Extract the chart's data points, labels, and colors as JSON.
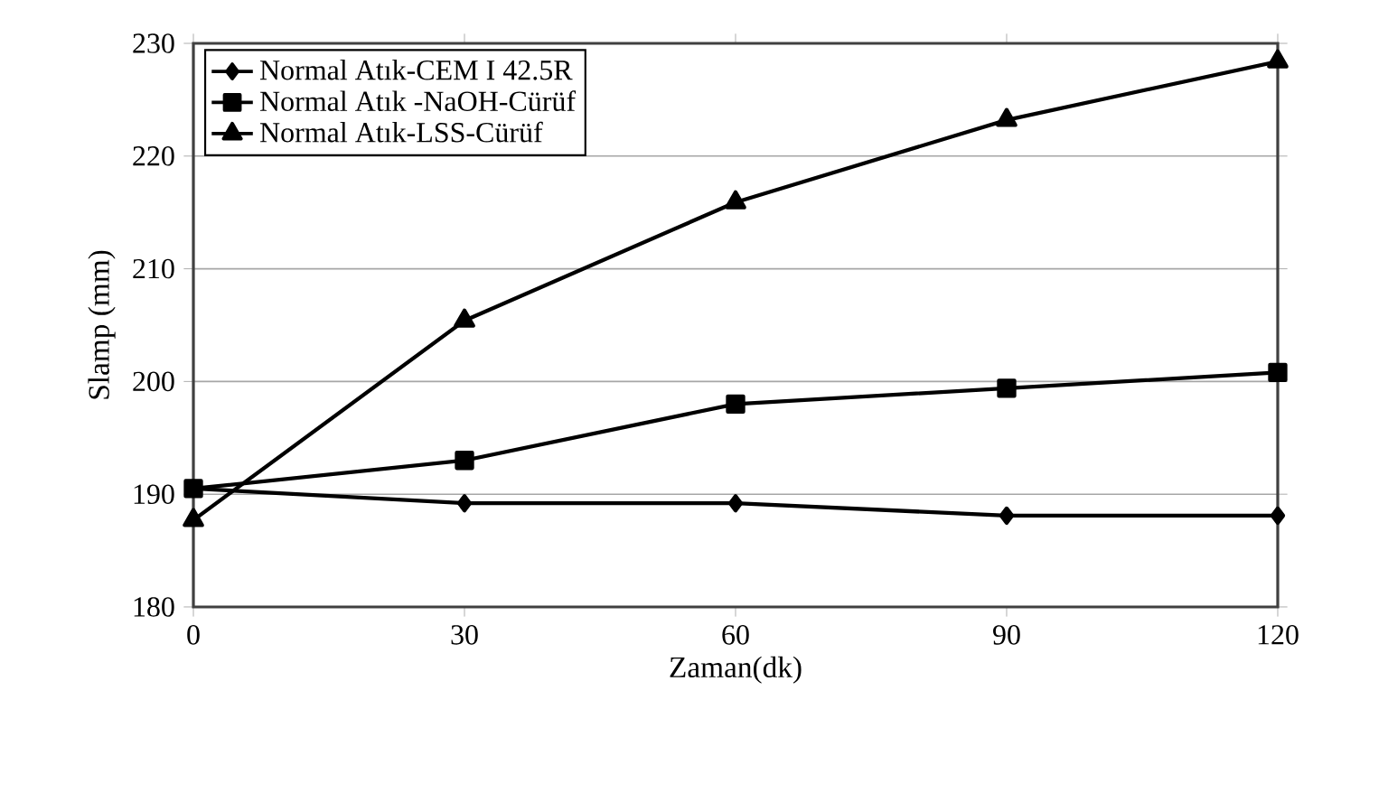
{
  "chart_data": {
    "type": "line",
    "xlabel": "Zaman(dk)",
    "ylabel": "Slamp (mm)",
    "x": [
      0,
      30,
      60,
      90,
      120
    ],
    "series": [
      {
        "name": "Normal Atık-CEM I 42.5R",
        "color": "#000000",
        "marker": "diamond",
        "values": [
          190.5,
          189.2,
          189.2,
          188.1,
          188.1
        ]
      },
      {
        "name": "Normal Atık -NaOH-Cürüf",
        "color": "#000000",
        "marker": "square",
        "values": [
          190.5,
          193,
          198,
          199.4,
          200.8
        ]
      },
      {
        "name": "Normal Atık-LSS-Cürüf",
        "color": "#000000",
        "marker": "triangle",
        "values": [
          187.7,
          205.4,
          215.9,
          223.2,
          228.4
        ]
      }
    ],
    "xlim": [
      0,
      120
    ],
    "xticks": [
      0,
      30,
      60,
      90,
      120
    ],
    "ylim": [
      180,
      230
    ],
    "yticks": [
      180,
      190,
      200,
      210,
      220,
      230
    ],
    "grid": "y",
    "legend": "top left",
    "line_style": "solid"
  }
}
